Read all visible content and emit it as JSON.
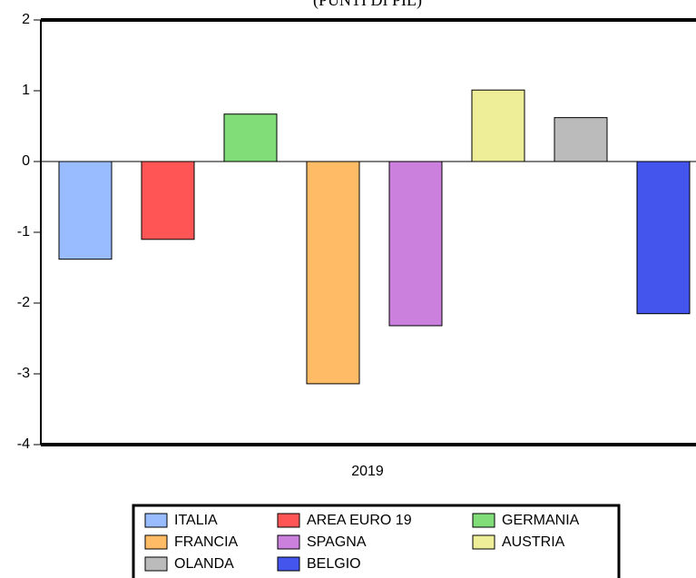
{
  "chart_data": {
    "type": "bar",
    "title": "(PUNTI DI PIL)",
    "categories": [
      "2019"
    ],
    "series": [
      {
        "name": "ITALIA",
        "color": "#99bbff",
        "values": [
          -1.38
        ]
      },
      {
        "name": "AREA EURO 19",
        "color": "#ff5555",
        "values": [
          -1.1
        ]
      },
      {
        "name": "GERMANIA",
        "color": "#80dd77",
        "values": [
          0.67
        ]
      },
      {
        "name": "FRANCIA",
        "color": "#ffbb66",
        "values": [
          -3.14
        ]
      },
      {
        "name": "SPAGNA",
        "color": "#cc80dd",
        "values": [
          -2.32
        ]
      },
      {
        "name": "AUSTRIA",
        "color": "#eeee99",
        "values": [
          1.01
        ]
      },
      {
        "name": "OLANDA",
        "color": "#bbbbbb",
        "values": [
          0.62
        ]
      },
      {
        "name": "BELGIO",
        "color": "#4455ee",
        "values": [
          -2.15
        ]
      }
    ],
    "ylim": [
      -4,
      2
    ],
    "yticks": [
      -4,
      -3,
      -2,
      -1,
      0,
      1,
      2
    ],
    "legend": "bottom"
  }
}
